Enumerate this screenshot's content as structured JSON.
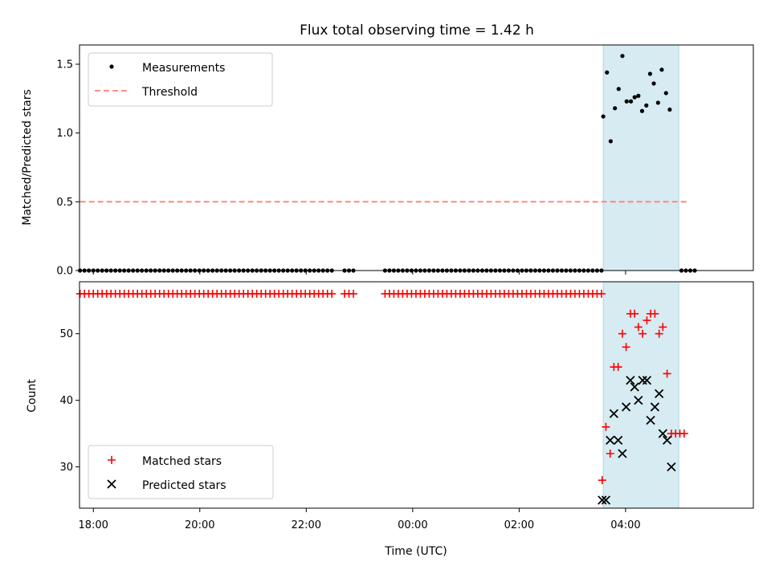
{
  "chart_data": {
    "type": "scatter",
    "title": "Flux total observing time = 1.42 h",
    "xlabel": "Time (UTC)",
    "xlim": [
      -0.26,
      12.4
    ],
    "xticks": [
      {
        "value": 0,
        "label": "18:00"
      },
      {
        "value": 2,
        "label": "20:00"
      },
      {
        "value": 4,
        "label": "22:00"
      },
      {
        "value": 6,
        "label": "00:00"
      },
      {
        "value": 8,
        "label": "02:00"
      },
      {
        "value": 10,
        "label": "04:00"
      }
    ],
    "highlight_span": [
      9.58,
      11.0
    ],
    "colors": {
      "measurements": "#000000",
      "threshold": "#ff7f7f",
      "matched": "#ff0000",
      "predicted": "#000000",
      "span": "#add8e6"
    },
    "panels": [
      {
        "name": "ratio",
        "ylabel": "Matched/Predicted stars",
        "ylim": [
          0,
          1.64
        ],
        "yticks": [
          {
            "value": 0.0,
            "label": "0.0"
          },
          {
            "value": 0.5,
            "label": "0.5"
          },
          {
            "value": 1.0,
            "label": "1.0"
          },
          {
            "value": 1.5,
            "label": "1.5"
          }
        ],
        "threshold": {
          "y": 0.5,
          "x_range": [
            -0.25,
            11.2
          ]
        },
        "measurements": {
          "zero_segments": [
            [
              -0.25,
              4.55
            ],
            [
              4.72,
              4.92
            ],
            [
              5.48,
              9.55
            ],
            [
              11.05,
              11.3
            ]
          ],
          "zero_step": 0.083,
          "points": [
            [
              9.58,
              1.12
            ],
            [
              9.65,
              1.44
            ],
            [
              9.72,
              0.94
            ],
            [
              9.8,
              1.18
            ],
            [
              9.87,
              1.32
            ],
            [
              9.94,
              1.56
            ],
            [
              10.02,
              1.23
            ],
            [
              10.1,
              1.23
            ],
            [
              10.17,
              1.26
            ],
            [
              10.24,
              1.27
            ],
            [
              10.31,
              1.16
            ],
            [
              10.39,
              1.2
            ],
            [
              10.46,
              1.43
            ],
            [
              10.53,
              1.36
            ],
            [
              10.61,
              1.22
            ],
            [
              10.68,
              1.46
            ],
            [
              10.76,
              1.29
            ],
            [
              10.83,
              1.17
            ]
          ]
        },
        "legend": [
          {
            "key": "measurements",
            "label": "Measurements"
          },
          {
            "key": "threshold",
            "label": "Threshold"
          }
        ]
      },
      {
        "name": "count",
        "ylabel": "Count",
        "ylim": [
          23.8,
          57.8
        ],
        "yticks": [
          {
            "value": 30,
            "label": "30"
          },
          {
            "value": 40,
            "label": "40"
          },
          {
            "value": 50,
            "label": "50"
          }
        ],
        "matched_constant": {
          "value": 56,
          "segments": [
            [
              -0.25,
              4.55
            ],
            [
              4.72,
              4.92
            ],
            [
              5.48,
              9.55
            ]
          ],
          "step": 0.083
        },
        "matched": [
          [
            9.56,
            28
          ],
          [
            9.63,
            36
          ],
          [
            9.71,
            32
          ],
          [
            9.78,
            45
          ],
          [
            9.86,
            45
          ],
          [
            9.94,
            50
          ],
          [
            10.01,
            48
          ],
          [
            10.09,
            53
          ],
          [
            10.17,
            53
          ],
          [
            10.24,
            51
          ],
          [
            10.32,
            50
          ],
          [
            10.4,
            52
          ],
          [
            10.47,
            53
          ],
          [
            10.55,
            53
          ],
          [
            10.63,
            50
          ],
          [
            10.7,
            51
          ],
          [
            10.78,
            44
          ],
          [
            10.86,
            35
          ],
          [
            10.94,
            35
          ],
          [
            11.02,
            35
          ],
          [
            11.1,
            35
          ]
        ],
        "predicted": [
          [
            9.56,
            25
          ],
          [
            9.63,
            25
          ],
          [
            9.71,
            34
          ],
          [
            9.78,
            38
          ],
          [
            9.86,
            34
          ],
          [
            9.94,
            32
          ],
          [
            10.01,
            39
          ],
          [
            10.09,
            43
          ],
          [
            10.17,
            42
          ],
          [
            10.24,
            40
          ],
          [
            10.32,
            43
          ],
          [
            10.4,
            43
          ],
          [
            10.47,
            37
          ],
          [
            10.55,
            39
          ],
          [
            10.63,
            41
          ],
          [
            10.7,
            35
          ],
          [
            10.78,
            34
          ],
          [
            10.86,
            30
          ]
        ],
        "legend": [
          {
            "key": "matched",
            "label": "Matched stars"
          },
          {
            "key": "predicted",
            "label": "Predicted stars"
          }
        ]
      }
    ]
  }
}
